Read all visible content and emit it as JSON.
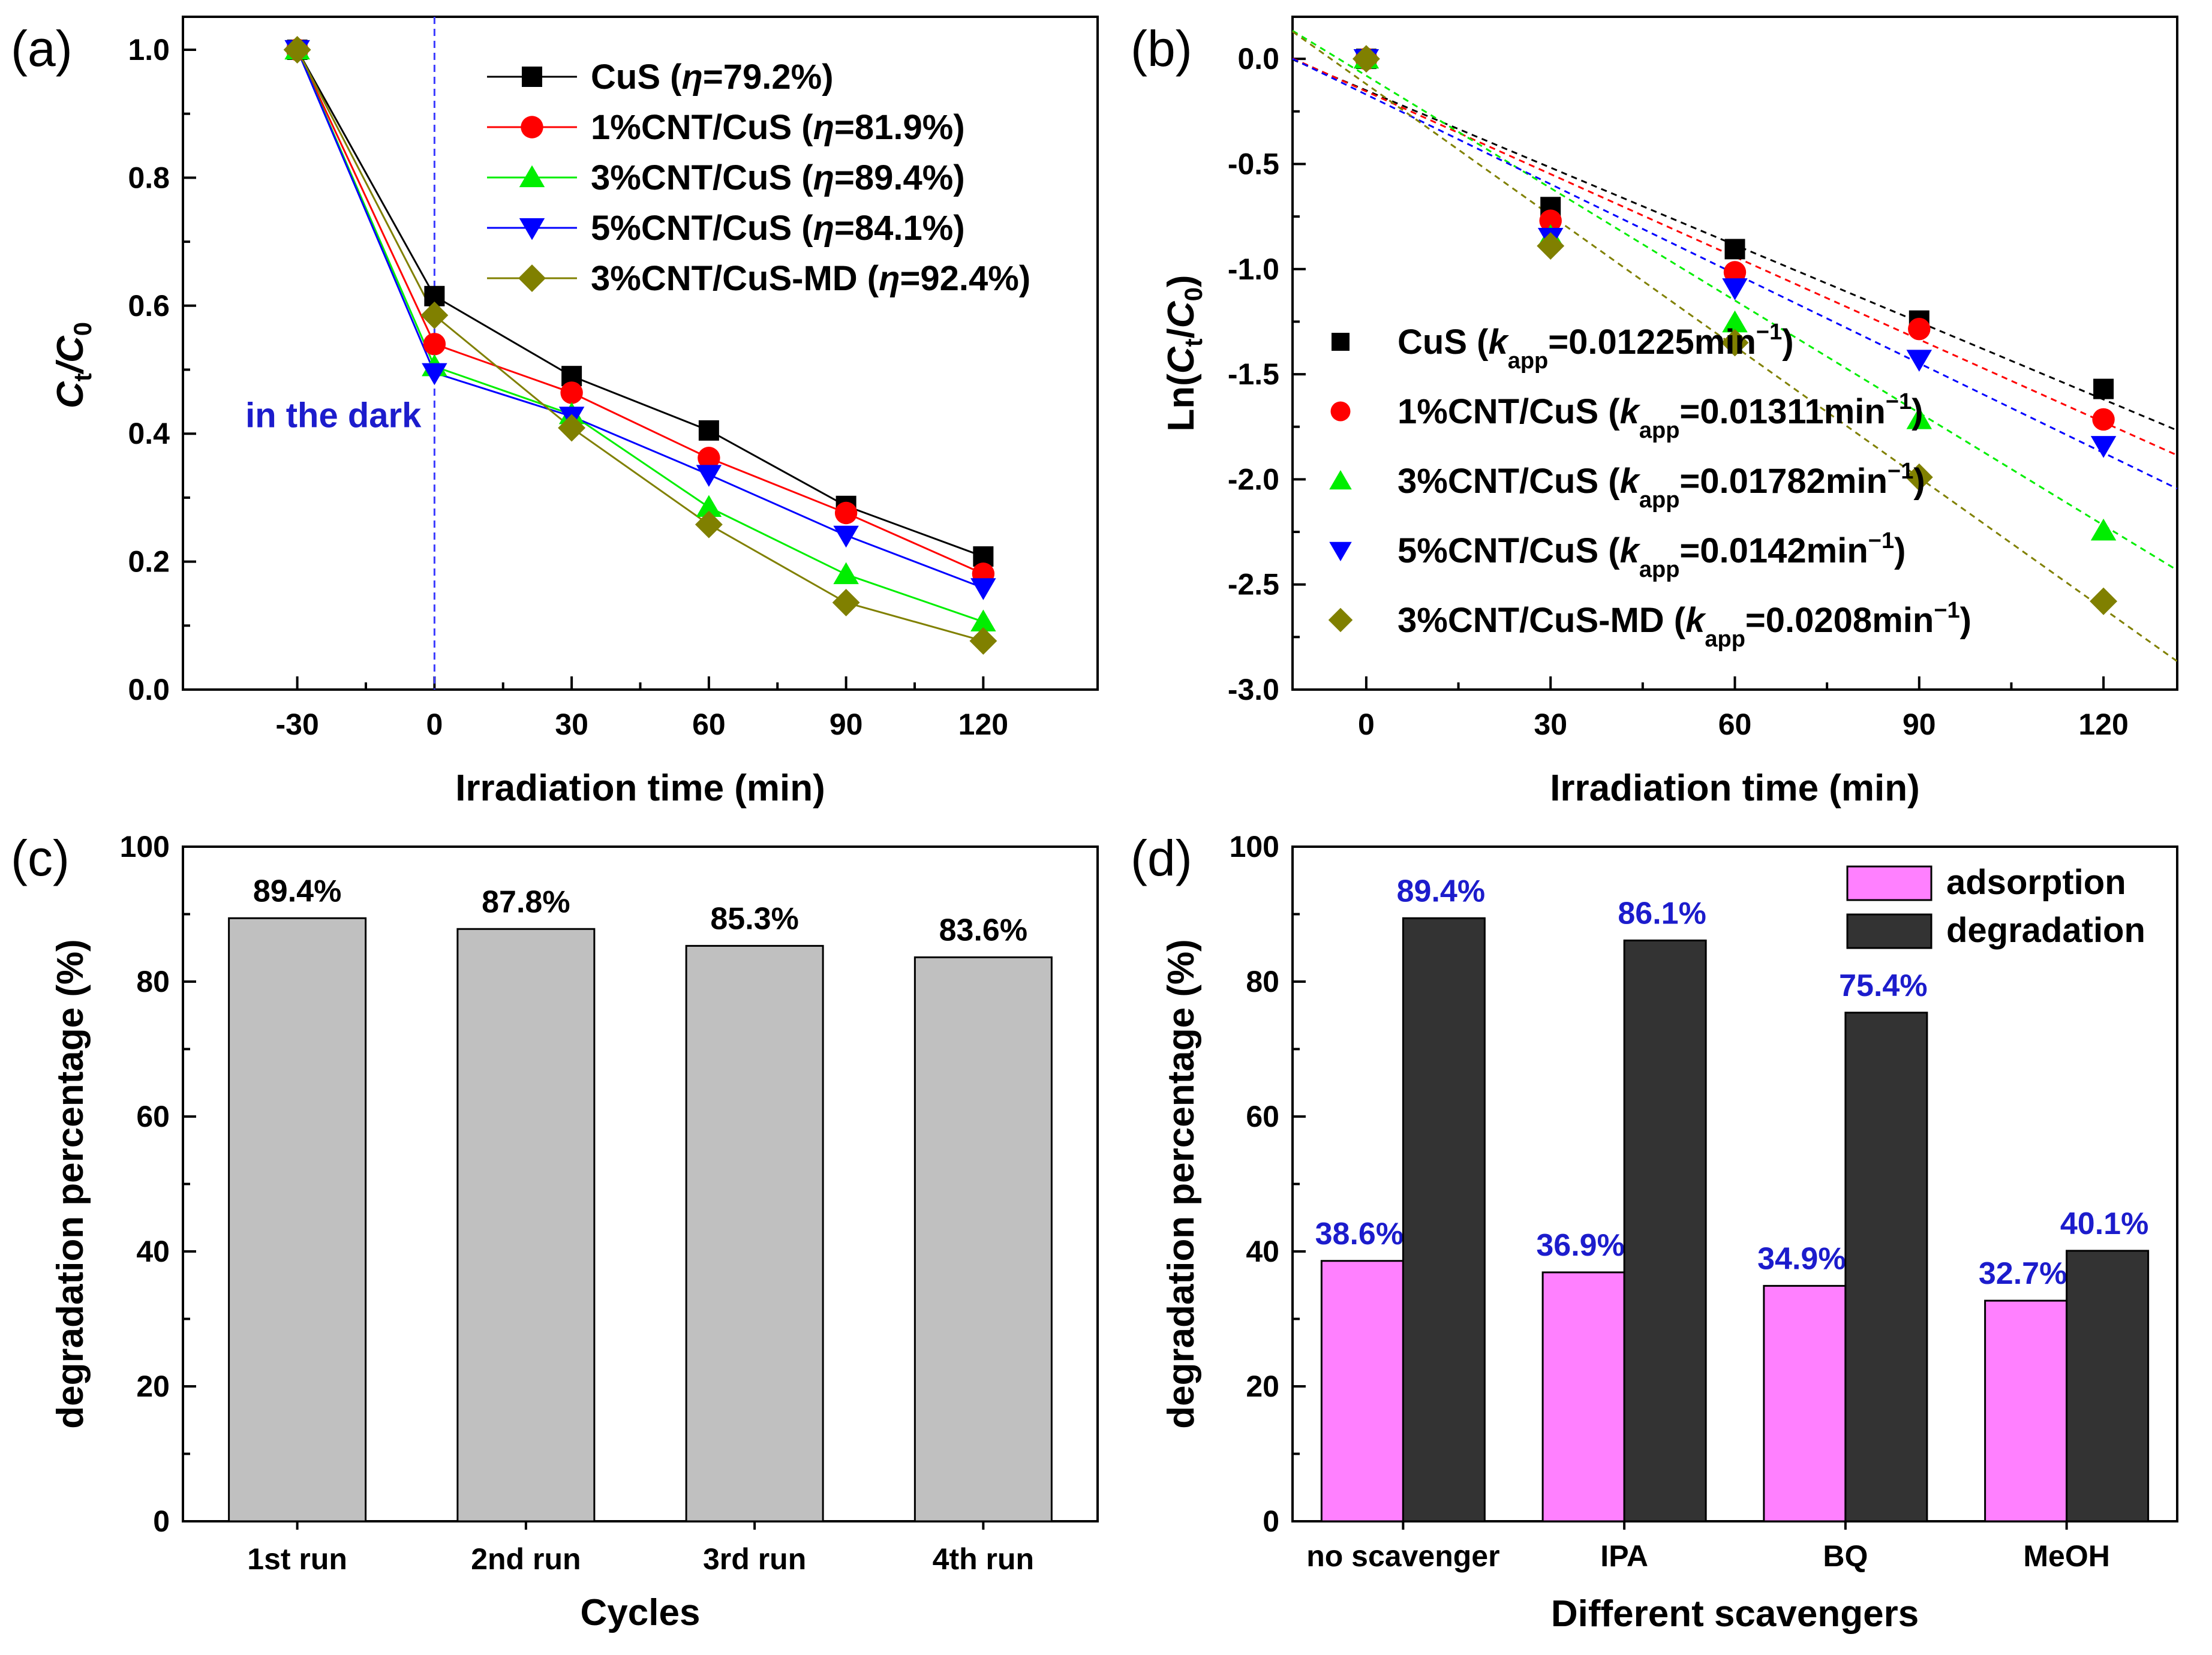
{
  "figure": {
    "panel_labels": [
      "(a)",
      "(b)",
      "(c)",
      "(d)"
    ]
  },
  "chart_data": [
    {
      "panel": "(a)",
      "type": "line",
      "xlabel": "Irradiation time (min)",
      "ylabel": "Ct/C0",
      "xlim": [
        -55,
        145
      ],
      "ylim": [
        0.0,
        1.0
      ],
      "xticks": [
        "-30",
        "0",
        "30",
        "60",
        "90",
        "120"
      ],
      "yticks": [
        "0.0",
        "0.2",
        "0.4",
        "0.6",
        "0.8",
        "1.0"
      ],
      "x": [
        -30,
        0,
        30,
        60,
        90,
        120
      ],
      "annotation": "in the dark",
      "annotation_x": 0,
      "legend_position": "top-right",
      "series": [
        {
          "name": "CuS",
          "eta": "79.2%",
          "color": "#000000",
          "marker": "square",
          "values": [
            1.0,
            0.615,
            0.49,
            0.405,
            0.287,
            0.208
          ]
        },
        {
          "name": "1%CNT/CuS",
          "eta": "81.9%",
          "color": "#ff0000",
          "marker": "circle",
          "values": [
            1.0,
            0.54,
            0.464,
            0.362,
            0.276,
            0.181
          ]
        },
        {
          "name": "3%CNT/CuS",
          "eta": "89.4%",
          "color": "#00ee00",
          "marker": "triangle-up",
          "values": [
            1.0,
            0.505,
            0.43,
            0.285,
            0.18,
            0.106
          ]
        },
        {
          "name": "5%CNT/CuS",
          "eta": "84.1%",
          "color": "#0000ff",
          "marker": "triangle-down",
          "values": [
            1.0,
            0.495,
            0.427,
            0.336,
            0.241,
            0.159
          ]
        },
        {
          "name": "3%CNT/CuS-MD",
          "eta": "92.4%",
          "color": "#808000",
          "marker": "diamond",
          "values": [
            1.0,
            0.585,
            0.409,
            0.258,
            0.136,
            0.076
          ]
        }
      ]
    },
    {
      "panel": "(b)",
      "type": "scatter",
      "xlabel": "Irradiation time (min)",
      "ylabel": "Ln(Ct/C0)",
      "xlim": [
        -12,
        132
      ],
      "ylim": [
        -3.0,
        0.2
      ],
      "xticks": [
        "0",
        "30",
        "60",
        "90",
        "120"
      ],
      "yticks": [
        "0.0",
        "-0.5",
        "-1.0",
        "-1.5",
        "-2.0",
        "-2.5",
        "-3.0"
      ],
      "x": [
        0,
        30,
        60,
        90,
        120
      ],
      "legend_position": "bottom-left",
      "series": [
        {
          "name": "CuS",
          "k_app": "0.01225",
          "color": "#000000",
          "marker": "square",
          "values": [
            0.0,
            -0.705,
            -0.905,
            -1.245,
            -1.57
          ],
          "fit": [
            -0.15,
            -0.01225
          ]
        },
        {
          "name": "1%CNT/CuS",
          "k_app": "0.01311",
          "color": "#ff0000",
          "marker": "circle",
          "values": [
            0.0,
            -0.77,
            -1.015,
            -1.285,
            -1.715
          ],
          "fit": [
            -0.155,
            -0.01311
          ]
        },
        {
          "name": "3%CNT/CuS",
          "k_app": "0.01782",
          "color": "#00ee00",
          "marker": "triangle-up",
          "values": [
            0.0,
            -0.845,
            -1.255,
            -1.715,
            -2.245
          ],
          "fit": [
            -0.08,
            -0.01782
          ]
        },
        {
          "name": "5%CNT/CuS",
          "k_app": "0.0142",
          "color": "#0000ff",
          "marker": "triangle-down",
          "values": [
            0.0,
            -0.85,
            -1.09,
            -1.43,
            -1.84
          ],
          "fit": [
            -0.17,
            -0.0142
          ]
        },
        {
          "name": "3%CNT/CuS-MD",
          "k_app": "0.0208",
          "color": "#808000",
          "marker": "diamond",
          "values": [
            0.0,
            -0.89,
            -1.35,
            -1.99,
            -2.58
          ],
          "fit": [
            -0.12,
            -0.0208
          ]
        }
      ]
    },
    {
      "panel": "(c)",
      "type": "bar",
      "xlabel": "Cycles",
      "ylabel": "degradation percentage (%)",
      "ylim": [
        0,
        100
      ],
      "yticks": [
        "0",
        "20",
        "40",
        "60",
        "80",
        "100"
      ],
      "categories": [
        "1st run",
        "2nd run",
        "3rd run",
        "4th run"
      ],
      "values": [
        89.4,
        87.8,
        85.3,
        83.6
      ],
      "labels": [
        "89.4%",
        "87.8%",
        "85.3%",
        "83.6%"
      ],
      "color": "#c0c0c0"
    },
    {
      "panel": "(d)",
      "type": "bar",
      "xlabel": "Different scavengers",
      "ylabel": "degradation percentage (%)",
      "ylim": [
        0,
        100
      ],
      "yticks": [
        "0",
        "20",
        "40",
        "60",
        "80",
        "100"
      ],
      "categories": [
        "no scavenger",
        "IPA",
        "BQ",
        "MeOH"
      ],
      "label_color": "#1c1ccc",
      "legend_position": "top-right",
      "series": [
        {
          "name": "adsorption",
          "color": "#ff80ff",
          "values": [
            38.6,
            36.9,
            34.9,
            32.7
          ],
          "labels": [
            "38.6%",
            "36.9%",
            "34.9%",
            "32.7%"
          ]
        },
        {
          "name": "degradation",
          "color": "#333333",
          "values": [
            89.4,
            86.1,
            75.4,
            40.1
          ],
          "labels": [
            "89.4%",
            "86.1%",
            "75.4%",
            "40.1%"
          ]
        }
      ]
    }
  ]
}
